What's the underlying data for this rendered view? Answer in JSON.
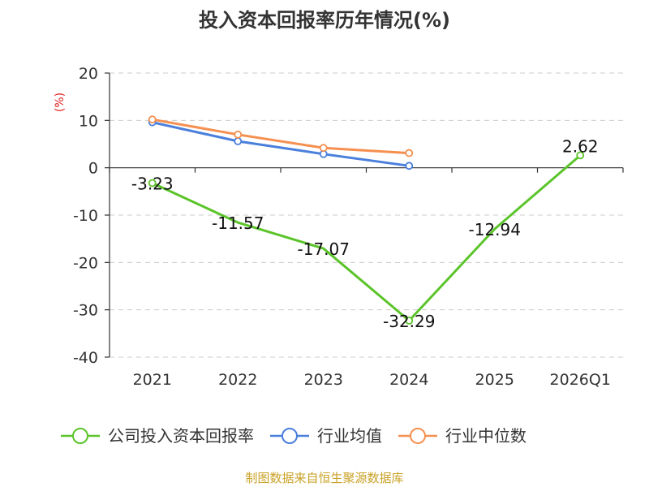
{
  "chart_data": {
    "type": "line",
    "title": "投入资本回报率历年情况(%)",
    "ylabel": "(%)",
    "xlabel": "",
    "categories": [
      "2021",
      "2022",
      "2023",
      "2024",
      "2025",
      "2026Q1"
    ],
    "ylim": [
      -40,
      20
    ],
    "yticks": [
      20,
      10,
      0,
      -10,
      -20,
      -30,
      -40
    ],
    "grid": true,
    "legend_position": "bottom",
    "series": [
      {
        "name": "公司投入资本回报率",
        "color": "#5bc42a",
        "values": [
          -3.23,
          -11.57,
          -17.07,
          -32.29,
          -12.94,
          2.62
        ],
        "labels": [
          "-3.23",
          "-11.57",
          "-17.07",
          "-32.29",
          "-12.94",
          "2.62"
        ],
        "show_markers": [
          true,
          false,
          false,
          true,
          false,
          true
        ]
      },
      {
        "name": "行业均值",
        "color": "#4a7fdc",
        "values": [
          9.6,
          5.6,
          2.9,
          0.4,
          null,
          null
        ]
      },
      {
        "name": "行业中位数",
        "color": "#f59050",
        "values": [
          10.2,
          7.0,
          4.2,
          3.1,
          null,
          null
        ]
      }
    ]
  },
  "source": "制图数据来自恒生聚源数据库"
}
